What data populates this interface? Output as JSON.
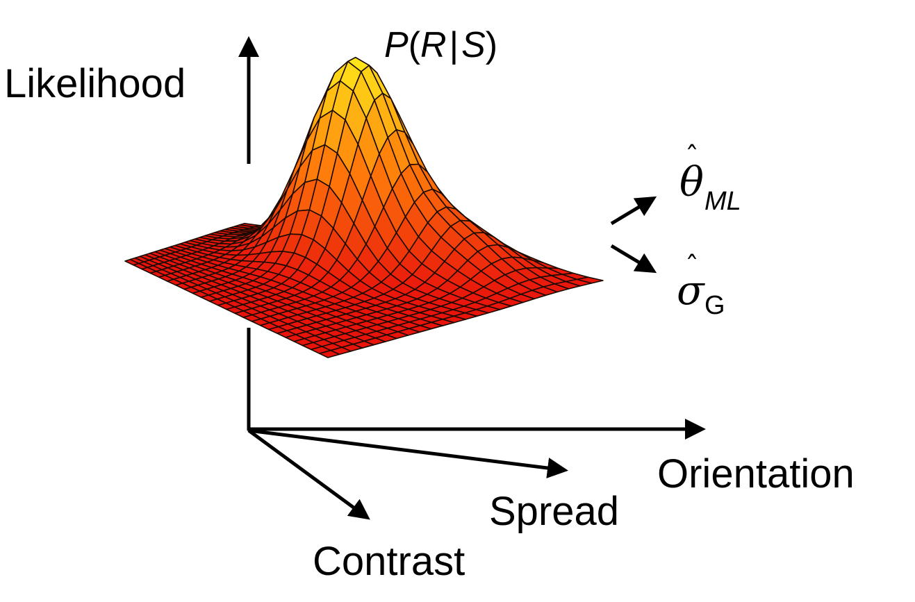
{
  "title": {
    "func": "P",
    "open_paren": "(",
    "response": "R",
    "given": "|",
    "stimulus": "S",
    "close_paren": ")"
  },
  "axes": {
    "vertical_label": "Likelihood",
    "horizontal_label": "Orientation",
    "depth_label_1": "Spread",
    "depth_label_2": "Contrast"
  },
  "estimates": {
    "theta": {
      "hat": "ˆ",
      "symbol": "θ",
      "subscript": "ML"
    },
    "sigma": {
      "hat": "ˆ",
      "symbol": "σ",
      "subscript": "G"
    }
  },
  "colors": {
    "ink": "#000000",
    "surface_low": "#e8140c",
    "surface_mid": "#ff7a0a",
    "surface_high": "#ffe81a",
    "mesh": "#1a0a00"
  }
}
